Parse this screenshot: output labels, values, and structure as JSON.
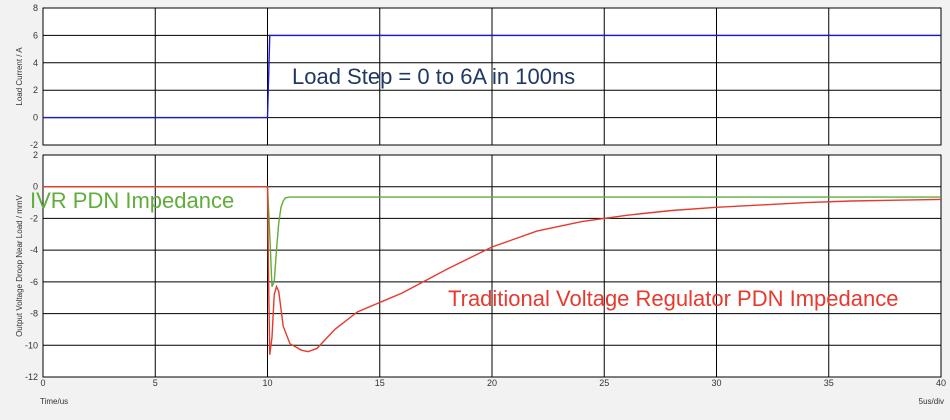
{
  "chart_data": [
    {
      "type": "line",
      "ylabel": "Load Current / A",
      "xlim": [
        0,
        40
      ],
      "ylim": [
        -2,
        8
      ],
      "xticks": [
        0,
        5,
        10,
        15,
        20,
        25,
        30,
        35,
        40
      ],
      "yticks": [
        -2,
        0,
        2,
        4,
        6,
        8
      ],
      "grid": true,
      "annotations": [
        {
          "text": "Load Step = 0 to 6A in 100ns",
          "color": "#1f3864"
        }
      ],
      "series": [
        {
          "color": "#1a1acc",
          "x": [
            0,
            10,
            10.1,
            10.2,
            40
          ],
          "y": [
            0,
            0,
            6,
            6,
            6
          ]
        }
      ]
    },
    {
      "type": "line",
      "ylabel": "Output Voltage Droop Near Load / mmV",
      "xlabel": "Time/us",
      "xlabel_right": "5us/div",
      "xlim": [
        0,
        40
      ],
      "ylim": [
        -12,
        2
      ],
      "xticks": [
        0,
        5,
        10,
        15,
        20,
        25,
        30,
        35,
        40
      ],
      "yticks": [
        -12,
        -10,
        -8,
        -6,
        -4,
        -2,
        0,
        2
      ],
      "grid": true,
      "series": [
        {
          "name": "IVR PDN Impedance",
          "color": "#5fae3a",
          "x": [
            0,
            10,
            10.1,
            10.2,
            10.3,
            10.4,
            10.5,
            10.6,
            10.7,
            10.8,
            11.0,
            11.5,
            12,
            40
          ],
          "y": [
            0,
            0,
            -3,
            -6.3,
            -6.0,
            -4.0,
            -2.3,
            -1.3,
            -0.9,
            -0.7,
            -0.65,
            -0.65,
            -0.65,
            -0.65
          ]
        },
        {
          "name": "Traditional Voltage Regulator PDN Impedance",
          "color": "#e8392e",
          "x": [
            0,
            10,
            10.05,
            10.1,
            10.2,
            10.3,
            10.4,
            10.5,
            10.7,
            11.0,
            11.5,
            11.8,
            12.2,
            13,
            14,
            16,
            18,
            20,
            22,
            24,
            26,
            28,
            30,
            32,
            34,
            36,
            38,
            40
          ],
          "y": [
            0,
            0,
            -6.0,
            -10.6,
            -9.5,
            -6.8,
            -6.3,
            -6.6,
            -8.8,
            -9.9,
            -10.3,
            -10.4,
            -10.2,
            -9.0,
            -7.9,
            -6.7,
            -5.2,
            -3.8,
            -2.8,
            -2.2,
            -1.8,
            -1.5,
            -1.3,
            -1.15,
            -1.0,
            -0.9,
            -0.85,
            -0.8
          ]
        }
      ]
    }
  ]
}
